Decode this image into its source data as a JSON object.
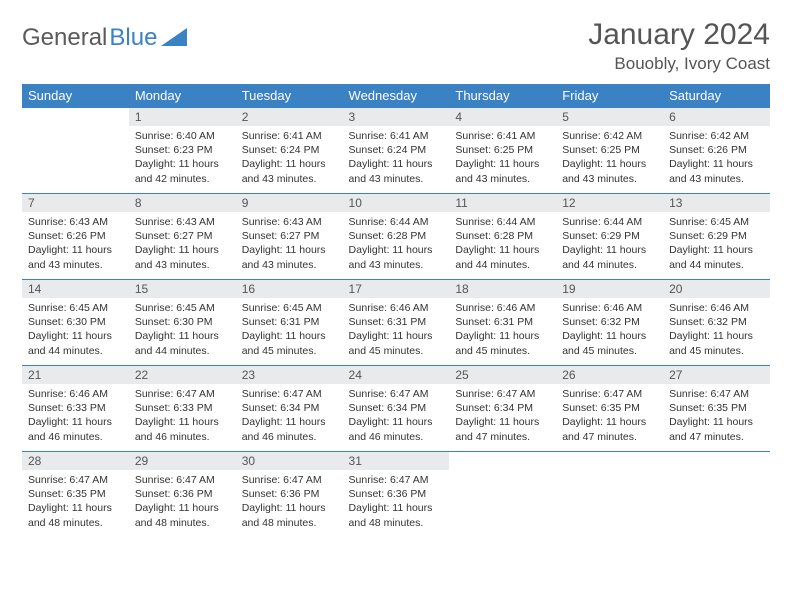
{
  "logo": {
    "word1": "General",
    "word2": "Blue"
  },
  "title": "January 2024",
  "location": "Bouobly, Ivory Coast",
  "colors": {
    "header_bg": "#3b82c4",
    "header_text": "#ffffff",
    "daynum_bg": "#e9eaec",
    "border": "#3b82c4",
    "text": "#333333",
    "title_text": "#555555"
  },
  "weekdays": [
    "Sunday",
    "Monday",
    "Tuesday",
    "Wednesday",
    "Thursday",
    "Friday",
    "Saturday"
  ],
  "weeks": [
    [
      null,
      {
        "n": "1",
        "sr": "6:40 AM",
        "ss": "6:23 PM",
        "dl": "11 hours and 42 minutes."
      },
      {
        "n": "2",
        "sr": "6:41 AM",
        "ss": "6:24 PM",
        "dl": "11 hours and 43 minutes."
      },
      {
        "n": "3",
        "sr": "6:41 AM",
        "ss": "6:24 PM",
        "dl": "11 hours and 43 minutes."
      },
      {
        "n": "4",
        "sr": "6:41 AM",
        "ss": "6:25 PM",
        "dl": "11 hours and 43 minutes."
      },
      {
        "n": "5",
        "sr": "6:42 AM",
        "ss": "6:25 PM",
        "dl": "11 hours and 43 minutes."
      },
      {
        "n": "6",
        "sr": "6:42 AM",
        "ss": "6:26 PM",
        "dl": "11 hours and 43 minutes."
      }
    ],
    [
      {
        "n": "7",
        "sr": "6:43 AM",
        "ss": "6:26 PM",
        "dl": "11 hours and 43 minutes."
      },
      {
        "n": "8",
        "sr": "6:43 AM",
        "ss": "6:27 PM",
        "dl": "11 hours and 43 minutes."
      },
      {
        "n": "9",
        "sr": "6:43 AM",
        "ss": "6:27 PM",
        "dl": "11 hours and 43 minutes."
      },
      {
        "n": "10",
        "sr": "6:44 AM",
        "ss": "6:28 PM",
        "dl": "11 hours and 43 minutes."
      },
      {
        "n": "11",
        "sr": "6:44 AM",
        "ss": "6:28 PM",
        "dl": "11 hours and 44 minutes."
      },
      {
        "n": "12",
        "sr": "6:44 AM",
        "ss": "6:29 PM",
        "dl": "11 hours and 44 minutes."
      },
      {
        "n": "13",
        "sr": "6:45 AM",
        "ss": "6:29 PM",
        "dl": "11 hours and 44 minutes."
      }
    ],
    [
      {
        "n": "14",
        "sr": "6:45 AM",
        "ss": "6:30 PM",
        "dl": "11 hours and 44 minutes."
      },
      {
        "n": "15",
        "sr": "6:45 AM",
        "ss": "6:30 PM",
        "dl": "11 hours and 44 minutes."
      },
      {
        "n": "16",
        "sr": "6:45 AM",
        "ss": "6:31 PM",
        "dl": "11 hours and 45 minutes."
      },
      {
        "n": "17",
        "sr": "6:46 AM",
        "ss": "6:31 PM",
        "dl": "11 hours and 45 minutes."
      },
      {
        "n": "18",
        "sr": "6:46 AM",
        "ss": "6:31 PM",
        "dl": "11 hours and 45 minutes."
      },
      {
        "n": "19",
        "sr": "6:46 AM",
        "ss": "6:32 PM",
        "dl": "11 hours and 45 minutes."
      },
      {
        "n": "20",
        "sr": "6:46 AM",
        "ss": "6:32 PM",
        "dl": "11 hours and 45 minutes."
      }
    ],
    [
      {
        "n": "21",
        "sr": "6:46 AM",
        "ss": "6:33 PM",
        "dl": "11 hours and 46 minutes."
      },
      {
        "n": "22",
        "sr": "6:47 AM",
        "ss": "6:33 PM",
        "dl": "11 hours and 46 minutes."
      },
      {
        "n": "23",
        "sr": "6:47 AM",
        "ss": "6:34 PM",
        "dl": "11 hours and 46 minutes."
      },
      {
        "n": "24",
        "sr": "6:47 AM",
        "ss": "6:34 PM",
        "dl": "11 hours and 46 minutes."
      },
      {
        "n": "25",
        "sr": "6:47 AM",
        "ss": "6:34 PM",
        "dl": "11 hours and 47 minutes."
      },
      {
        "n": "26",
        "sr": "6:47 AM",
        "ss": "6:35 PM",
        "dl": "11 hours and 47 minutes."
      },
      {
        "n": "27",
        "sr": "6:47 AM",
        "ss": "6:35 PM",
        "dl": "11 hours and 47 minutes."
      }
    ],
    [
      {
        "n": "28",
        "sr": "6:47 AM",
        "ss": "6:35 PM",
        "dl": "11 hours and 48 minutes."
      },
      {
        "n": "29",
        "sr": "6:47 AM",
        "ss": "6:36 PM",
        "dl": "11 hours and 48 minutes."
      },
      {
        "n": "30",
        "sr": "6:47 AM",
        "ss": "6:36 PM",
        "dl": "11 hours and 48 minutes."
      },
      {
        "n": "31",
        "sr": "6:47 AM",
        "ss": "6:36 PM",
        "dl": "11 hours and 48 minutes."
      },
      null,
      null,
      null
    ]
  ],
  "labels": {
    "sunrise": "Sunrise:",
    "sunset": "Sunset:",
    "daylight": "Daylight:"
  }
}
